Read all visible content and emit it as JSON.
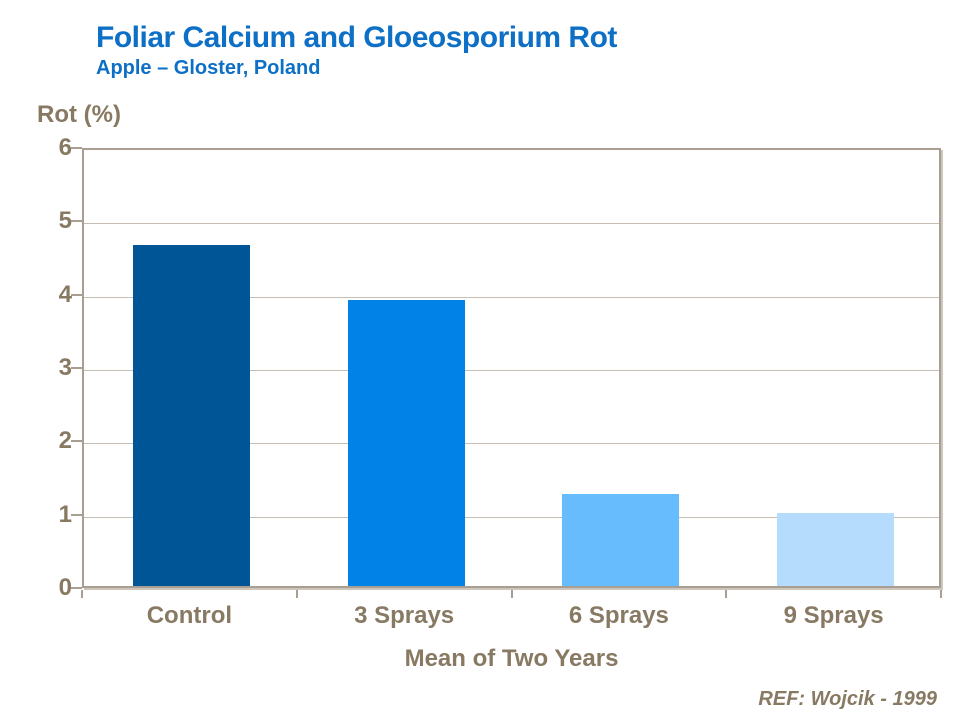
{
  "header": {
    "title": "Foliar Calcium and Gloeosporium Rot",
    "subtitle": "Apple – Gloster, Poland"
  },
  "footer": {
    "ref": "REF: Wojcik - 1999"
  },
  "colors": {
    "title_blue": "#0D70C6",
    "axis_text_taupe": "#877962",
    "frame_taupe": "#A89E91",
    "frame_shadow": "#CDC6BC",
    "gridline": "#C6BEB2",
    "bar_colors": [
      "#005596",
      "#0082E6",
      "#66BCFC",
      "#B5DCFC"
    ]
  },
  "chart_data": {
    "type": "bar",
    "title": "Foliar Calcium and Gloeosporium Rot",
    "subtitle": "Apple – Gloster, Poland",
    "categories": [
      "Control",
      "3 Sprays",
      "6 Sprays",
      "9 Sprays"
    ],
    "values": [
      4.65,
      3.9,
      1.25,
      1.0
    ],
    "xlabel": "Mean of Two Years",
    "ylabel": "Rot (%)",
    "ylim": [
      0,
      6
    ],
    "yticks": [
      0,
      1,
      2,
      3,
      4,
      5,
      6
    ],
    "grid": true,
    "legend_position": "none",
    "bar_width_fraction": 0.545
  }
}
